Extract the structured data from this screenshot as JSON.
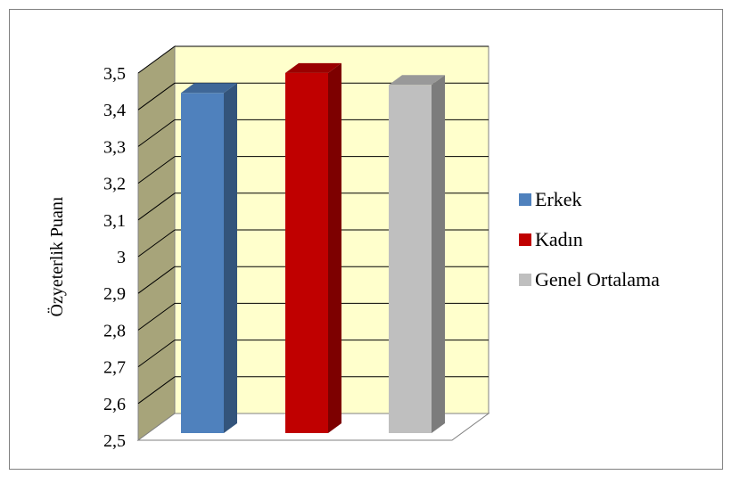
{
  "chart_data": {
    "type": "bar",
    "title": "",
    "xlabel": "",
    "ylabel": "Özyeterlik Puanı",
    "ylim": [
      2.5,
      3.5
    ],
    "yticks": [
      "2,5",
      "2,6",
      "2,7",
      "2,8",
      "2,9",
      "3",
      "3,1",
      "3,2",
      "3,3",
      "3,4",
      "3,5"
    ],
    "grid": true,
    "legend_position": "right",
    "series": [
      {
        "name": "Erkek",
        "value": 3.35,
        "color": "#4F81BD"
      },
      {
        "name": "Kadın",
        "value": 3.4,
        "color": "#C00000"
      },
      {
        "name": "Genel Ortalama",
        "value": 3.37,
        "color": "#BFBFBF"
      }
    ]
  }
}
